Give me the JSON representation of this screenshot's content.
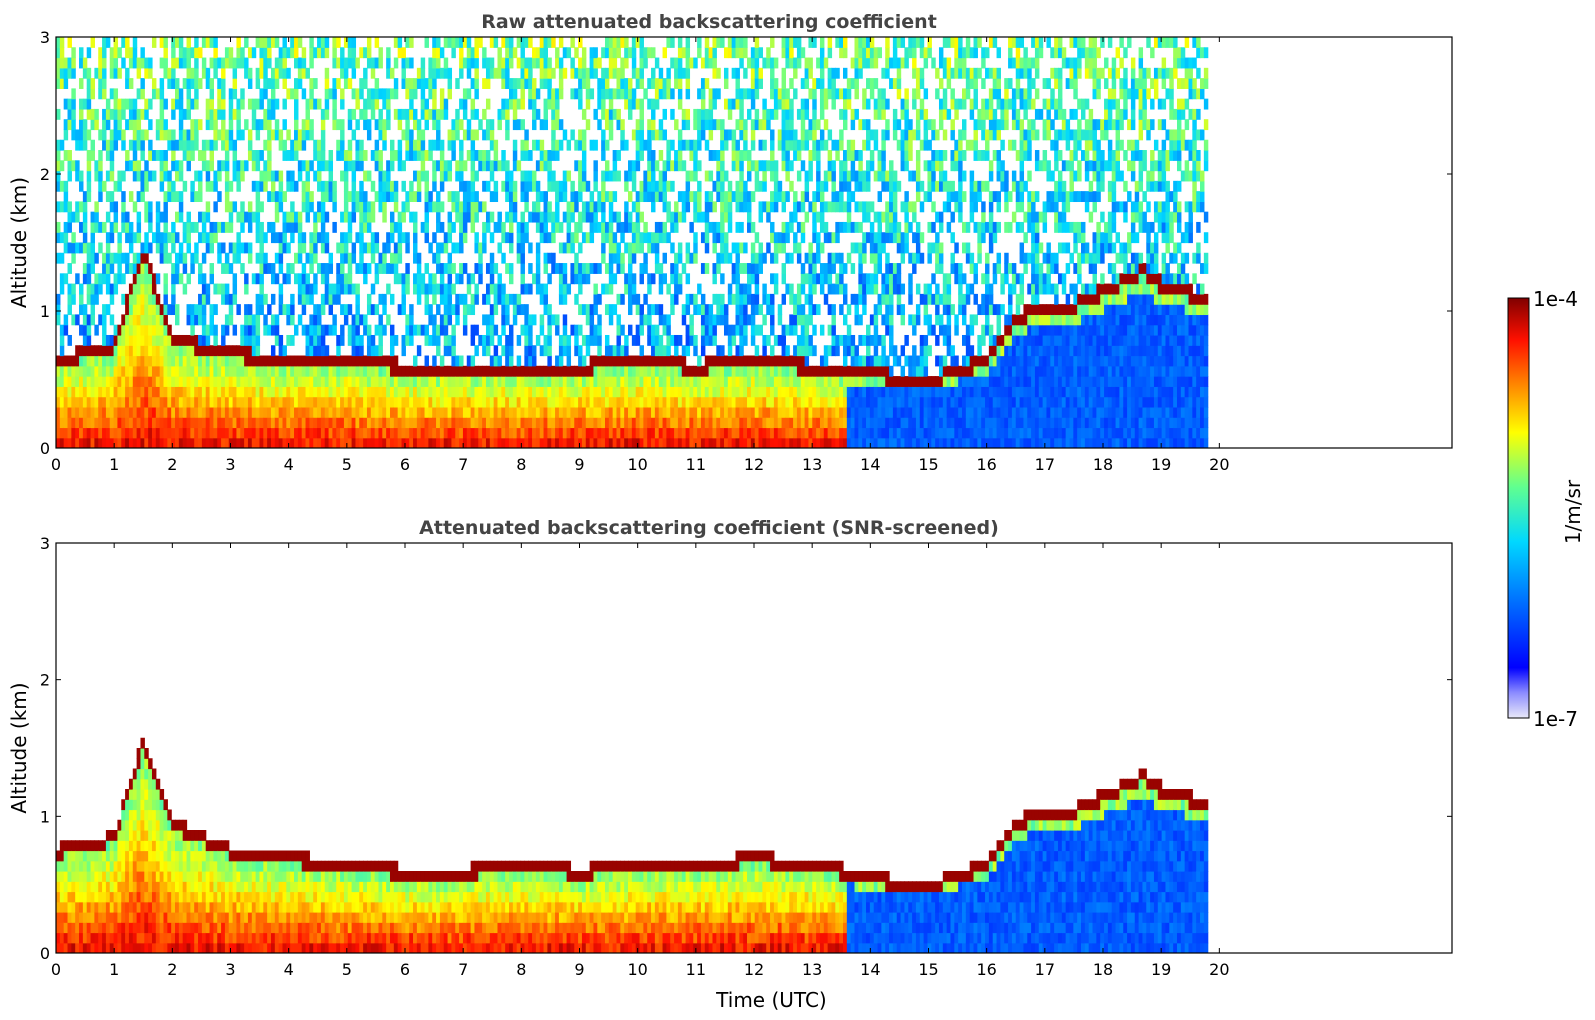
{
  "chart_data": [
    {
      "type": "heatmap",
      "title": "Raw attenuated backscattering coefficient",
      "xlabel": "",
      "ylabel": "Altitude (km)",
      "xlim": [
        0,
        24
      ],
      "ylim": [
        0,
        3
      ],
      "xticks": [
        "0",
        "1",
        "2",
        "3",
        "4",
        "5",
        "6",
        "7",
        "8",
        "9",
        "10",
        "11",
        "12",
        "13",
        "14",
        "15",
        "16",
        "17",
        "18",
        "19",
        "20"
      ],
      "yticks": [
        "0",
        "1",
        "2",
        "3"
      ],
      "data_end_time": 19.8,
      "noise_above_signal": true,
      "boundary_layer_top_km": [
        [
          0,
          0.6
        ],
        [
          1,
          0.7
        ],
        [
          1.5,
          1.4
        ],
        [
          2,
          0.75
        ],
        [
          3,
          0.65
        ],
        [
          4,
          0.6
        ],
        [
          5,
          0.6
        ],
        [
          6,
          0.55
        ],
        [
          7,
          0.55
        ],
        [
          8,
          0.55
        ],
        [
          9,
          0.55
        ],
        [
          10,
          0.6
        ],
        [
          11,
          0.55
        ],
        [
          12,
          0.6
        ],
        [
          13,
          0.55
        ],
        [
          13.6,
          0.5
        ],
        [
          14,
          0.5
        ],
        [
          15,
          0.45
        ],
        [
          16,
          0.6
        ],
        [
          16.5,
          0.9
        ],
        [
          17,
          1.0
        ],
        [
          17.5,
          1.0
        ],
        [
          18,
          1.1
        ],
        [
          18.7,
          1.25
        ],
        [
          19,
          1.15
        ],
        [
          19.8,
          1.05
        ]
      ],
      "colorbar": {
        "min": "1e-7",
        "max": "1e-4",
        "label": "1/m/sr",
        "scale": "log"
      }
    },
    {
      "type": "heatmap",
      "title": "Attenuated backscattering coefficient (SNR-screened)",
      "xlabel": "Time (UTC)",
      "ylabel": "Altitude (km)",
      "xlim": [
        0,
        24
      ],
      "ylim": [
        0,
        3
      ],
      "xticks": [
        "0",
        "1",
        "2",
        "3",
        "4",
        "5",
        "6",
        "7",
        "8",
        "9",
        "10",
        "11",
        "12",
        "13",
        "14",
        "15",
        "16",
        "17",
        "18",
        "19",
        "20"
      ],
      "yticks": [
        "0",
        "1",
        "2",
        "3"
      ],
      "data_end_time": 19.8,
      "noise_above_signal": false,
      "boundary_layer_top_km": [
        [
          0,
          0.7
        ],
        [
          1,
          0.8
        ],
        [
          1.5,
          1.5
        ],
        [
          2,
          0.9
        ],
        [
          3,
          0.7
        ],
        [
          4,
          0.65
        ],
        [
          5,
          0.6
        ],
        [
          6,
          0.55
        ],
        [
          7,
          0.55
        ],
        [
          8,
          0.6
        ],
        [
          9,
          0.55
        ],
        [
          10,
          0.6
        ],
        [
          11,
          0.6
        ],
        [
          12,
          0.65
        ],
        [
          13,
          0.6
        ],
        [
          13.6,
          0.55
        ],
        [
          14,
          0.5
        ],
        [
          15,
          0.45
        ],
        [
          16,
          0.6
        ],
        [
          16.5,
          0.9
        ],
        [
          17,
          1.0
        ],
        [
          17.5,
          1.0
        ],
        [
          18,
          1.1
        ],
        [
          18.7,
          1.25
        ],
        [
          19,
          1.15
        ],
        [
          19.8,
          1.05
        ]
      ],
      "colorbar": {
        "min": "1e-7",
        "max": "1e-4",
        "label": "1/m/sr",
        "scale": "log"
      }
    }
  ],
  "colorbar": {
    "max_label": "1e-4",
    "min_label": "1e-7",
    "unit_label": "1/m/sr",
    "colormap": "jet"
  }
}
